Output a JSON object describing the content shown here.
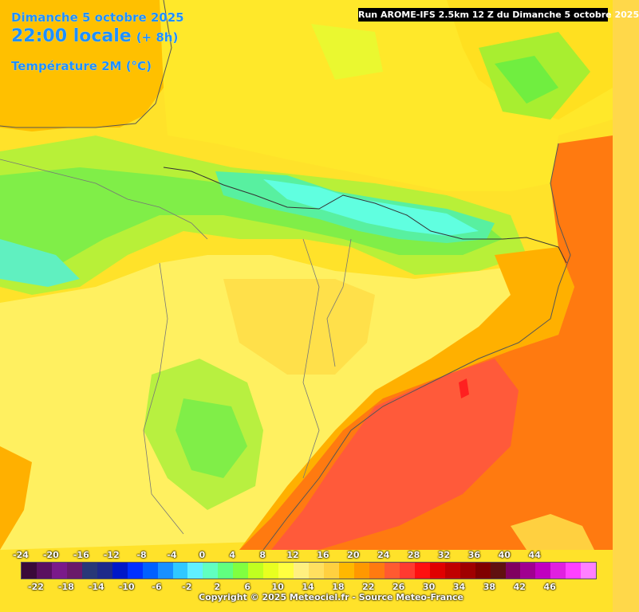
{
  "header": {
    "date": "Dimanche 5 octobre 2025",
    "time": "22:00 locale",
    "offset": "(+ 8h)",
    "variable": "Température 2M (°C)"
  },
  "run_banner": "Run AROME-IFS 2.5km 12 Z du Dimanche 5 octobre 2025",
  "legend": {
    "top_labels": [
      "-24",
      "-20",
      "-16",
      "-12",
      "-8",
      "-4",
      "0",
      "4",
      "8",
      "12",
      "16",
      "20",
      "24",
      "28",
      "32",
      "36",
      "40",
      "44"
    ],
    "bottom_labels": [
      "-22",
      "-18",
      "-14",
      "-10",
      "-6",
      "-2",
      "2",
      "6",
      "10",
      "14",
      "18",
      "22",
      "26",
      "30",
      "34",
      "38",
      "42",
      "46"
    ],
    "colors": [
      "#3a0a3a",
      "#5a1060",
      "#7a1a8a",
      "#6a1a6a",
      "#283878",
      "#1e2a8a",
      "#0018c8",
      "#0030ff",
      "#0060ff",
      "#1890ff",
      "#30c8ff",
      "#60f0ff",
      "#60ffc0",
      "#60ff80",
      "#80ff40",
      "#c0ff20",
      "#e8ff20",
      "#ffff40",
      "#fff080",
      "#ffe060",
      "#ffd040",
      "#ffb800",
      "#ff9800",
      "#ff7a10",
      "#ff5a30",
      "#ff3a30",
      "#ff1010",
      "#e00000",
      "#c00000",
      "#a00000",
      "#800000",
      "#601010",
      "#800060",
      "#a00090",
      "#c000c0",
      "#e020e0",
      "#ff40ff",
      "#ff80ff"
    ]
  },
  "copyright": "Copyright © 2025 Meteociel.fr - Source Meteo-France"
}
